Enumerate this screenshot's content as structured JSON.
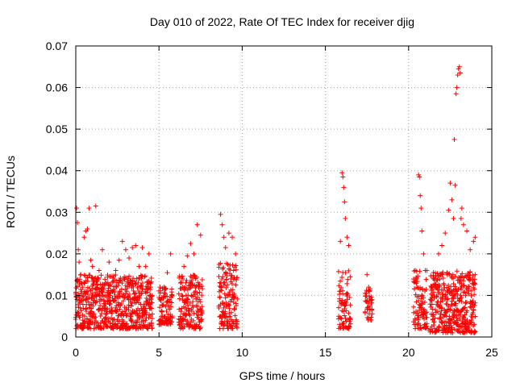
{
  "chart_data": {
    "type": "scatter",
    "title": "Day 010 of 2022, Rate Of TEC Index for receiver djig",
    "xlabel": "GPS time / hours",
    "ylabel": "ROTI / TECUs",
    "xlim": [
      0,
      25
    ],
    "ylim": [
      0,
      0.07
    ],
    "xticks": [
      0,
      5,
      10,
      15,
      20,
      25
    ],
    "xtick_labels": [
      "0",
      "5",
      "10",
      "15",
      "20",
      "25"
    ],
    "yticks": [
      0,
      0.01,
      0.02,
      0.03,
      0.04,
      0.05,
      0.06,
      0.07
    ],
    "ytick_labels": [
      "0",
      "0.01",
      "0.02",
      "0.03",
      "0.04",
      "0.05",
      "0.06",
      "0.07"
    ],
    "grid": true,
    "marker": "+",
    "series": [
      {
        "name": "ROTI",
        "color": "#ff0000",
        "points": [
          [
            0.05,
            0.031
          ],
          [
            0.1,
            0.0275
          ],
          [
            0.15,
            0.021
          ],
          [
            0.2,
            0.018
          ],
          [
            0.3,
            0.015
          ],
          [
            0.4,
            0.012
          ],
          [
            0.5,
            0.024
          ],
          [
            0.6,
            0.0255
          ],
          [
            0.7,
            0.026
          ],
          [
            0.8,
            0.031
          ],
          [
            0.9,
            0.0185
          ],
          [
            1.0,
            0.017
          ],
          [
            1.1,
            0.014
          ],
          [
            1.2,
            0.0315
          ],
          [
            1.4,
            0.016
          ],
          [
            1.6,
            0.021
          ],
          [
            1.8,
            0.013
          ],
          [
            2.0,
            0.018
          ],
          [
            2.2,
            0.011
          ],
          [
            2.4,
            0.016
          ],
          [
            2.6,
            0.0185
          ],
          [
            2.8,
            0.023
          ],
          [
            3.0,
            0.021
          ],
          [
            3.2,
            0.019
          ],
          [
            3.4,
            0.0215
          ],
          [
            3.6,
            0.022
          ],
          [
            3.8,
            0.017
          ],
          [
            4.0,
            0.0215
          ],
          [
            4.2,
            0.017
          ],
          [
            4.4,
            0.02
          ],
          [
            4.5,
            0.012
          ],
          [
            5.1,
            0.009
          ],
          [
            5.3,
            0.012
          ],
          [
            5.5,
            0.0155
          ],
          [
            5.7,
            0.02
          ],
          [
            6.3,
            0.013
          ],
          [
            6.5,
            0.017
          ],
          [
            6.7,
            0.0195
          ],
          [
            6.9,
            0.0225
          ],
          [
            7.1,
            0.02
          ],
          [
            7.3,
            0.027
          ],
          [
            7.5,
            0.0245
          ],
          [
            8.7,
            0.0295
          ],
          [
            8.8,
            0.027
          ],
          [
            8.9,
            0.024
          ],
          [
            9.0,
            0.0215
          ],
          [
            9.2,
            0.025
          ],
          [
            9.4,
            0.024
          ],
          [
            9.6,
            0.02
          ],
          [
            15.9,
            0.023
          ],
          [
            16.0,
            0.0395
          ],
          [
            16.05,
            0.0385
          ],
          [
            16.1,
            0.036
          ],
          [
            16.15,
            0.0325
          ],
          [
            16.2,
            0.0285
          ],
          [
            16.3,
            0.024
          ],
          [
            16.4,
            0.022
          ],
          [
            15.8,
            0.005
          ],
          [
            17.5,
            0.015
          ],
          [
            17.6,
            0.012
          ],
          [
            20.4,
            0.016
          ],
          [
            20.5,
            0.012
          ],
          [
            20.6,
            0.039
          ],
          [
            20.65,
            0.0385
          ],
          [
            20.7,
            0.034
          ],
          [
            20.75,
            0.031
          ],
          [
            20.8,
            0.0255
          ],
          [
            20.9,
            0.02
          ],
          [
            21.0,
            0.016
          ],
          [
            21.5,
            0.014
          ],
          [
            21.8,
            0.02
          ],
          [
            22.0,
            0.022
          ],
          [
            22.2,
            0.025
          ],
          [
            22.4,
            0.0305
          ],
          [
            22.5,
            0.037
          ],
          [
            22.6,
            0.033
          ],
          [
            22.7,
            0.0285
          ],
          [
            22.75,
            0.0475
          ],
          [
            22.8,
            0.0365
          ],
          [
            22.85,
            0.0585
          ],
          [
            22.9,
            0.06
          ],
          [
            22.95,
            0.063
          ],
          [
            23.0,
            0.0645
          ],
          [
            23.05,
            0.065
          ],
          [
            23.1,
            0.0635
          ],
          [
            23.15,
            0.0285
          ],
          [
            23.2,
            0.031
          ],
          [
            23.3,
            0.027
          ],
          [
            23.5,
            0.0255
          ],
          [
            23.7,
            0.021
          ],
          [
            23.9,
            0.023
          ],
          [
            24.0,
            0.024
          ]
        ]
      }
    ],
    "dense_segments": [
      {
        "x": [
          0.0,
          4.6
        ],
        "y": [
          0.002,
          0.015
        ],
        "density": 28
      },
      {
        "x": [
          5.0,
          5.8
        ],
        "y": [
          0.003,
          0.012
        ],
        "density": 22
      },
      {
        "x": [
          6.2,
          7.6
        ],
        "y": [
          0.002,
          0.015
        ],
        "density": 24
      },
      {
        "x": [
          8.6,
          9.7
        ],
        "y": [
          0.002,
          0.018
        ],
        "density": 26
      },
      {
        "x": [
          15.8,
          16.5
        ],
        "y": [
          0.002,
          0.016
        ],
        "density": 20
      },
      {
        "x": [
          17.4,
          17.8
        ],
        "y": [
          0.004,
          0.012
        ],
        "density": 18
      },
      {
        "x": [
          20.3,
          21.1
        ],
        "y": [
          0.002,
          0.016
        ],
        "density": 22
      },
      {
        "x": [
          21.3,
          24.0
        ],
        "y": [
          0.001,
          0.016
        ],
        "density": 30
      }
    ]
  }
}
